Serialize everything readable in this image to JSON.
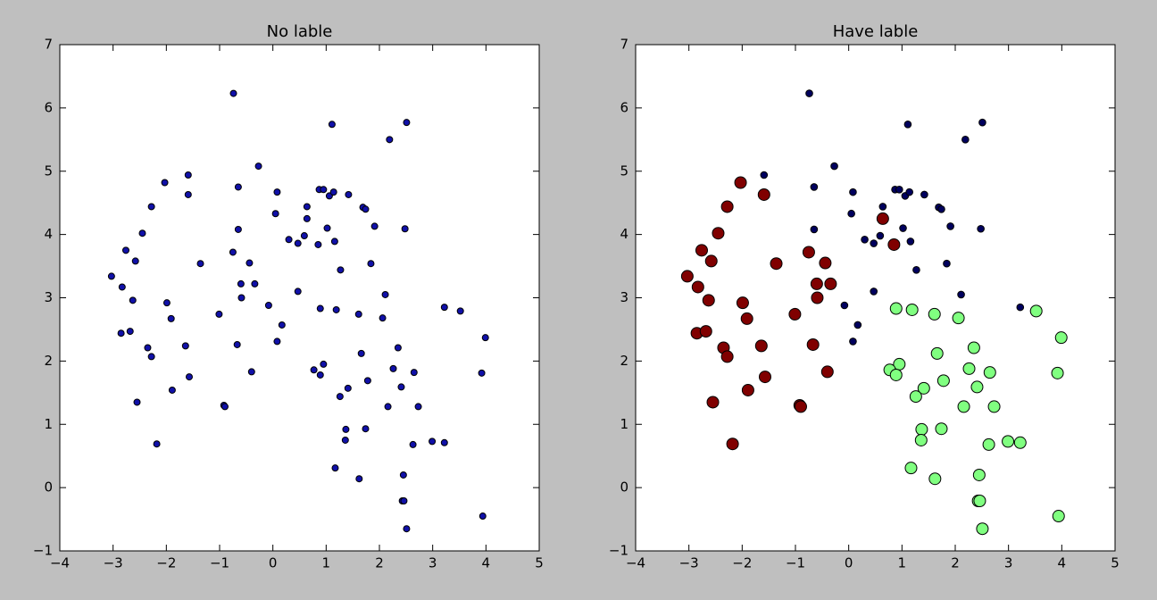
{
  "chart_data": [
    {
      "type": "scatter",
      "title": "No lable",
      "xlim": [
        -4,
        5
      ],
      "ylim": [
        -1,
        7
      ],
      "xticks": [
        {
          "value": -4,
          "label": "−4"
        },
        {
          "value": -3,
          "label": "−3"
        },
        {
          "value": -2,
          "label": "−2"
        },
        {
          "value": -1,
          "label": "−1"
        },
        0,
        1,
        2,
        3,
        4,
        5
      ],
      "yticks": [
        {
          "value": -1,
          "label": "−1"
        },
        0,
        1,
        2,
        3,
        4,
        5,
        6,
        7
      ],
      "series": [
        {
          "color": "#1010a8",
          "x": [
            -0.74,
            1.11,
            2.51,
            2.19,
            -0.27,
            -1.59,
            -0.65,
            0.08,
            0.87,
            0.95,
            1.06,
            1.14,
            1.42,
            1.69,
            1.74,
            0.64,
            0.05,
            -0.65,
            1.02,
            1.91,
            2.48,
            0.3,
            0.47,
            0.59,
            1.16,
            1.27,
            1.84,
            0.47,
            2.11,
            -0.08,
            3.22,
            0.17,
            0.08,
            -2.03,
            -1.59,
            -2.28,
            0.64,
            -2.45,
            0.85,
            -2.76,
            -0.75,
            -2.58,
            -1.36,
            -0.44,
            -3.03,
            -2.83,
            -0.6,
            -0.34,
            -2.63,
            -0.59,
            -1.99,
            -1.01,
            -1.91,
            -2.85,
            -2.68,
            -0.67,
            -1.64,
            -2.35,
            -2.28,
            -1.89,
            -0.4,
            -1.57,
            -2.55,
            -0.92,
            -0.9,
            -2.18,
            0.89,
            1.19,
            3.52,
            1.61,
            2.06,
            3.99,
            2.35,
            1.66,
            0.95,
            0.77,
            0.89,
            2.26,
            2.65,
            3.92,
            1.78,
            2.41,
            1.41,
            1.26,
            2.16,
            2.73,
            1.37,
            1.74,
            1.36,
            2.63,
            2.99,
            3.22,
            1.17,
            1.62,
            2.45,
            2.43,
            2.46,
            3.94,
            2.51
          ],
          "values": [
            6.23,
            5.74,
            5.77,
            5.5,
            5.08,
            4.94,
            4.75,
            4.67,
            4.71,
            4.71,
            4.61,
            4.67,
            4.63,
            4.43,
            4.4,
            4.44,
            4.33,
            4.08,
            4.1,
            4.13,
            4.09,
            3.92,
            3.86,
            3.98,
            3.89,
            3.44,
            3.54,
            3.1,
            3.05,
            2.88,
            2.85,
            2.57,
            2.31,
            4.82,
            4.63,
            4.44,
            4.25,
            4.02,
            3.84,
            3.75,
            3.72,
            3.58,
            3.54,
            3.55,
            3.34,
            3.17,
            3.22,
            3.22,
            2.96,
            3.0,
            2.92,
            2.74,
            2.67,
            2.44,
            2.47,
            2.26,
            2.24,
            2.21,
            2.07,
            1.54,
            1.83,
            1.75,
            1.35,
            1.3,
            1.28,
            0.69,
            2.83,
            2.81,
            2.79,
            2.74,
            2.68,
            2.37,
            2.21,
            2.12,
            1.95,
            1.86,
            1.78,
            1.88,
            1.82,
            1.81,
            1.69,
            1.59,
            1.57,
            1.44,
            1.28,
            1.28,
            0.92,
            0.93,
            0.75,
            0.68,
            0.73,
            0.71,
            0.31,
            0.14,
            0.2,
            -0.21,
            -0.21,
            -0.45,
            -0.65
          ]
        }
      ]
    },
    {
      "type": "scatter",
      "title": "Have lable",
      "xlim": [
        -4,
        5
      ],
      "ylim": [
        -1,
        7
      ],
      "xticks": [
        {
          "value": -4,
          "label": "−4"
        },
        {
          "value": -3,
          "label": "−3"
        },
        {
          "value": -2,
          "label": "−2"
        },
        {
          "value": -1,
          "label": "−1"
        },
        0,
        1,
        2,
        3,
        4,
        5
      ],
      "yticks": [
        {
          "value": -1,
          "label": "−1"
        },
        0,
        1,
        2,
        3,
        4,
        5,
        6,
        7
      ],
      "series": [
        {
          "color": "#00005e",
          "x": [
            -0.74,
            1.11,
            2.51,
            2.19,
            -0.27,
            -1.59,
            -0.65,
            0.08,
            0.87,
            0.95,
            1.06,
            1.14,
            1.42,
            1.69,
            1.74,
            0.64,
            0.05,
            -0.65,
            1.02,
            1.91,
            2.48,
            0.3,
            0.47,
            0.59,
            1.16,
            1.27,
            1.84,
            0.47,
            2.11,
            -0.08,
            3.22,
            0.17,
            0.08
          ],
          "values": [
            6.23,
            5.74,
            5.77,
            5.5,
            5.08,
            4.94,
            4.75,
            4.67,
            4.71,
            4.71,
            4.61,
            4.67,
            4.63,
            4.43,
            4.4,
            4.44,
            4.33,
            4.08,
            4.1,
            4.13,
            4.09,
            3.92,
            3.86,
            3.98,
            3.89,
            3.44,
            3.54,
            3.1,
            3.05,
            2.88,
            2.85,
            2.57,
            2.31
          ]
        },
        {
          "color": "#800000",
          "x": [
            -2.03,
            -1.59,
            -2.28,
            0.64,
            -2.45,
            0.85,
            -2.76,
            -0.75,
            -2.58,
            -1.36,
            -0.44,
            -3.03,
            -2.83,
            -0.6,
            -0.34,
            -2.63,
            -0.59,
            -1.99,
            -1.01,
            -1.91,
            -2.85,
            -2.68,
            -0.67,
            -1.64,
            -2.35,
            -2.28,
            -1.89,
            -0.4,
            -1.57,
            -2.55,
            -0.92,
            -0.9,
            -2.18
          ],
          "values": [
            4.82,
            4.63,
            4.44,
            4.25,
            4.02,
            3.84,
            3.75,
            3.72,
            3.58,
            3.54,
            3.55,
            3.34,
            3.17,
            3.22,
            3.22,
            2.96,
            3.0,
            2.92,
            2.74,
            2.67,
            2.44,
            2.47,
            2.26,
            2.24,
            2.21,
            2.07,
            1.54,
            1.83,
            1.75,
            1.35,
            1.3,
            1.28,
            0.69
          ]
        },
        {
          "color": "#80ff80",
          "x": [
            0.89,
            1.19,
            3.52,
            1.61,
            2.06,
            3.99,
            2.35,
            1.66,
            0.95,
            0.77,
            0.89,
            2.26,
            2.65,
            3.92,
            1.78,
            2.41,
            1.41,
            1.26,
            2.16,
            2.73,
            1.37,
            1.74,
            1.36,
            2.63,
            2.99,
            3.22,
            1.17,
            1.62,
            2.45,
            2.43,
            2.46,
            3.94,
            2.51
          ],
          "values": [
            2.83,
            2.81,
            2.79,
            2.74,
            2.68,
            2.37,
            2.21,
            2.12,
            1.95,
            1.86,
            1.78,
            1.88,
            1.82,
            1.81,
            1.69,
            1.59,
            1.57,
            1.44,
            1.28,
            1.28,
            0.92,
            0.93,
            0.75,
            0.68,
            0.73,
            0.71,
            0.31,
            0.14,
            0.2,
            -0.21,
            -0.21,
            -0.45,
            -0.65
          ]
        }
      ]
    }
  ]
}
